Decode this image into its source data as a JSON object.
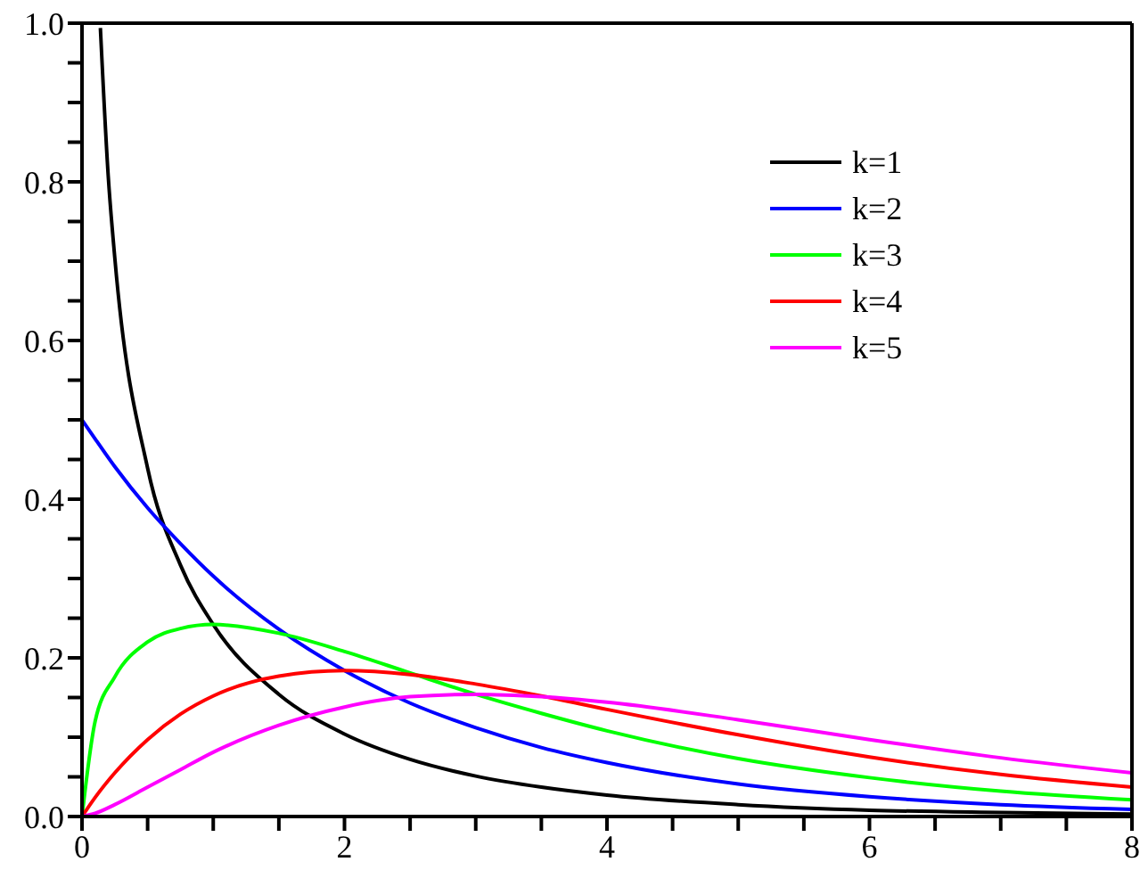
{
  "chart_data": {
    "type": "line",
    "x": [
      0,
      0.1,
      0.25,
      0.5,
      0.75,
      1,
      1.5,
      2,
      2.5,
      3,
      3.5,
      4,
      5,
      6,
      7,
      8
    ],
    "series": [
      {
        "name": "k=1",
        "color": "#000000",
        "x": [
          0.14,
          0.2,
          0.25,
          0.5,
          0.75,
          1,
          1.5,
          2,
          2.5,
          3,
          3.5,
          4,
          5,
          6,
          7,
          8
        ],
        "values": [
          0.994,
          0.807,
          0.704,
          0.439,
          0.317,
          0.242,
          0.154,
          0.104,
          0.072,
          0.051,
          0.037,
          0.027,
          0.015,
          0.008,
          0.005,
          0.003
        ]
      },
      {
        "name": "k=2",
        "color": "#0000ff",
        "values": [
          0.5,
          0.476,
          0.441,
          0.389,
          0.344,
          0.303,
          0.236,
          0.184,
          0.143,
          0.112,
          0.087,
          0.068,
          0.041,
          0.025,
          0.015,
          0.009
        ]
      },
      {
        "name": "k=3",
        "color": "#00ff00",
        "values": [
          0,
          0.12,
          0.176,
          0.22,
          0.237,
          0.242,
          0.231,
          0.208,
          0.181,
          0.154,
          0.13,
          0.108,
          0.073,
          0.049,
          0.032,
          0.021
        ]
      },
      {
        "name": "k=4",
        "color": "#ff0000",
        "values": [
          0,
          0.024,
          0.055,
          0.097,
          0.129,
          0.152,
          0.177,
          0.184,
          0.179,
          0.167,
          0.152,
          0.135,
          0.103,
          0.075,
          0.053,
          0.037
        ]
      },
      {
        "name": "k=5",
        "color": "#ff00ff",
        "values": [
          0,
          0.004,
          0.015,
          0.037,
          0.059,
          0.081,
          0.115,
          0.138,
          0.151,
          0.154,
          0.151,
          0.144,
          0.122,
          0.097,
          0.074,
          0.055
        ]
      }
    ],
    "xlim": [
      0,
      8
    ],
    "ylim": [
      0,
      1
    ],
    "xticks": [
      0,
      {
        "value": 0.5,
        "label": null
      },
      {
        "value": 1,
        "label": null
      },
      {
        "value": 1.5,
        "label": null
      },
      2,
      {
        "value": 2.5,
        "label": null
      },
      {
        "value": 3,
        "label": null
      },
      {
        "value": 3.5,
        "label": null
      },
      4,
      {
        "value": 4.5,
        "label": null
      },
      {
        "value": 5,
        "label": null
      },
      {
        "value": 5.5,
        "label": null
      },
      6,
      {
        "value": 6.5,
        "label": null
      },
      {
        "value": 7,
        "label": null
      },
      {
        "value": 7.5,
        "label": null
      },
      8
    ],
    "yticks": [
      {
        "value": 0,
        "label": "0.0"
      },
      {
        "value": 0.05,
        "label": null
      },
      {
        "value": 0.1,
        "label": null
      },
      {
        "value": 0.15,
        "label": null
      },
      {
        "value": 0.2,
        "label": "0.2"
      },
      {
        "value": 0.25,
        "label": null
      },
      {
        "value": 0.3,
        "label": null
      },
      {
        "value": 0.35,
        "label": null
      },
      {
        "value": 0.4,
        "label": "0.4"
      },
      {
        "value": 0.45,
        "label": null
      },
      {
        "value": 0.5,
        "label": null
      },
      {
        "value": 0.55,
        "label": null
      },
      {
        "value": 0.6,
        "label": "0.6"
      },
      {
        "value": 0.65,
        "label": null
      },
      {
        "value": 0.7,
        "label": null
      },
      {
        "value": 0.75,
        "label": null
      },
      {
        "value": 0.8,
        "label": "0.8"
      },
      {
        "value": 0.85,
        "label": null
      },
      {
        "value": 0.9,
        "label": null
      },
      {
        "value": 0.95,
        "label": null
      },
      {
        "value": 1,
        "label": "1.0"
      }
    ],
    "grid": false,
    "legend": "top right",
    "marker": "none",
    "line_style": "solid"
  }
}
